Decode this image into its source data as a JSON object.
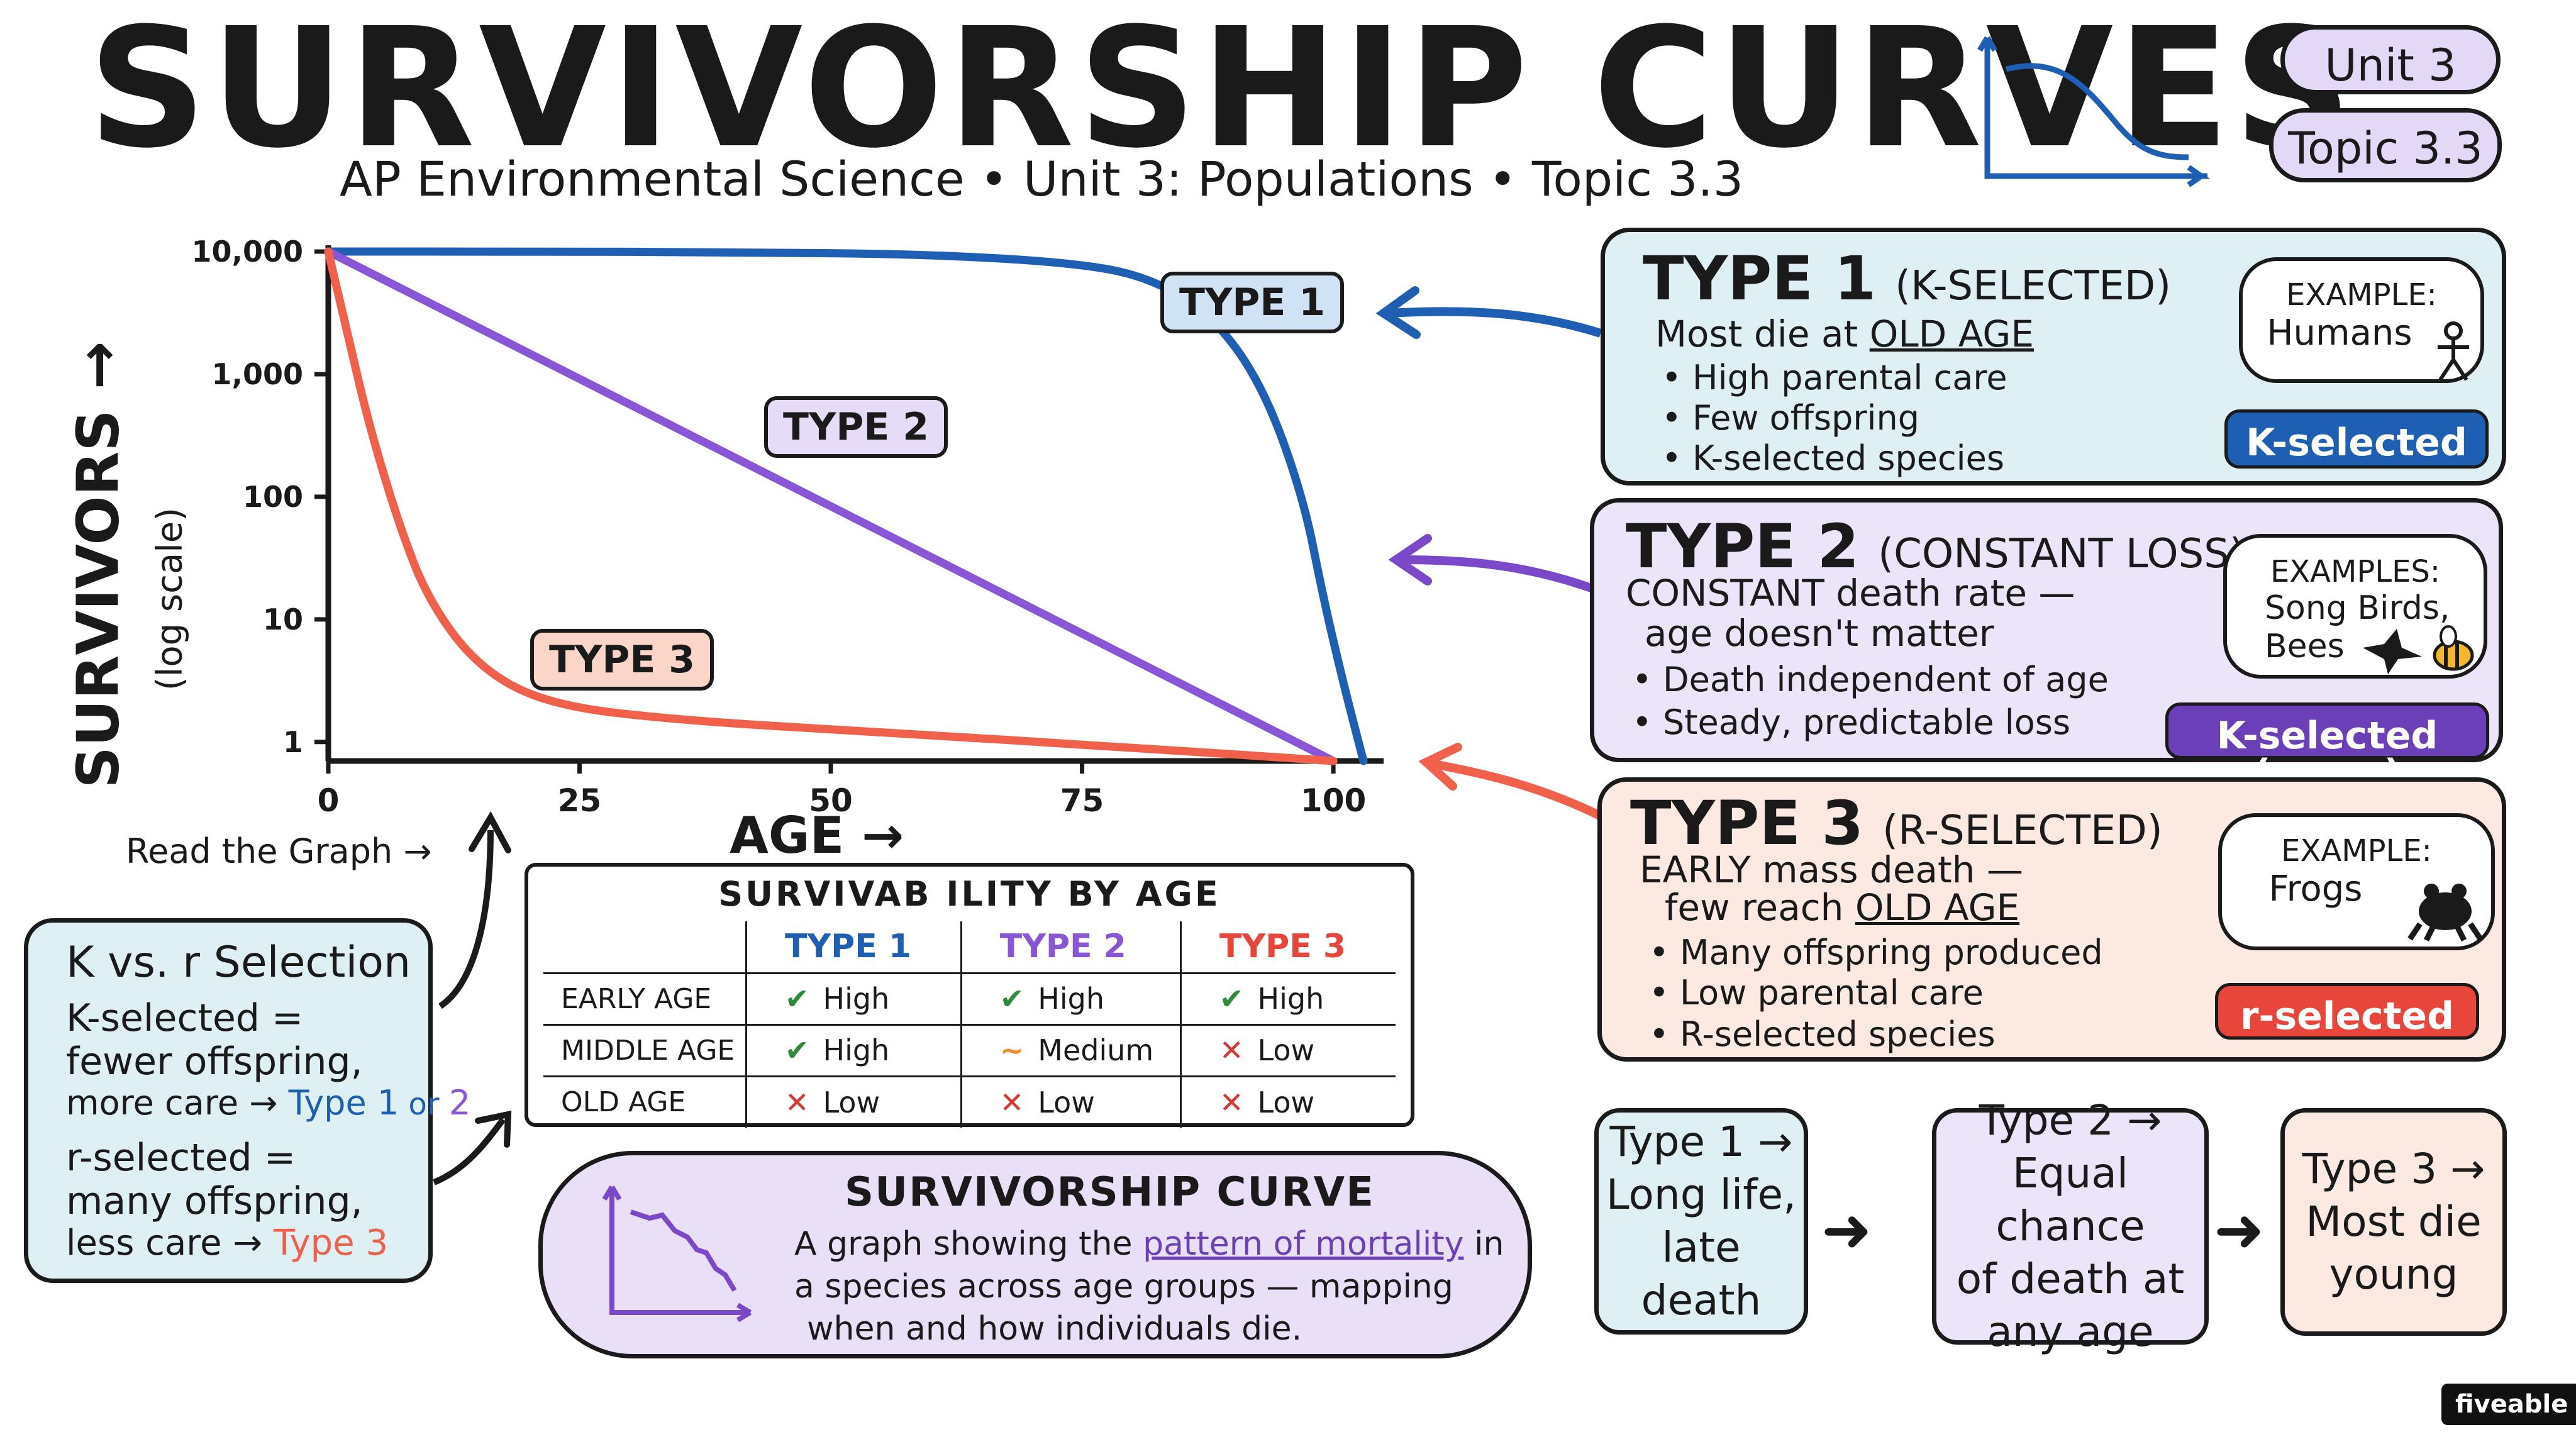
{
  "header": {
    "title": "SURVIVORSHIP CURVES",
    "subtitle": "AP Environmental Science • Unit 3: Populations • Topic 3.3",
    "unit_pill": "Unit 3",
    "topic_pill": "Topic 3.3"
  },
  "chart_data": {
    "type": "line",
    "xlabel": "AGE →",
    "ylabel": "SURVIVORS →",
    "ylabel_sub": "(log scale)",
    "x_ticks": [
      "0",
      "25",
      "50",
      "75",
      "100"
    ],
    "y_ticks": [
      "10,000",
      "1,000",
      "100",
      "10",
      "1"
    ],
    "y_scale": "log",
    "xlim": [
      0,
      105
    ],
    "ylim": [
      0.7,
      10000
    ],
    "grid": false,
    "series": [
      {
        "name": "TYPE 1",
        "color": "#1f5fb3",
        "points": [
          [
            0,
            10000
          ],
          [
            20,
            10000
          ],
          [
            40,
            9900
          ],
          [
            60,
            9500
          ],
          [
            75,
            8000
          ],
          [
            82,
            6000
          ],
          [
            88,
            3000
          ],
          [
            93,
            800
          ],
          [
            97,
            100
          ],
          [
            99,
            15
          ],
          [
            101,
            3
          ],
          [
            103,
            0.7
          ]
        ]
      },
      {
        "name": "TYPE 2",
        "color": "#8856d6",
        "points": [
          [
            0,
            10000
          ],
          [
            100,
            0.7
          ]
        ]
      },
      {
        "name": "TYPE 3",
        "color": "#f0604a",
        "points": [
          [
            0,
            10000
          ],
          [
            2,
            2000
          ],
          [
            4,
            400
          ],
          [
            7,
            60
          ],
          [
            10,
            14
          ],
          [
            15,
            4
          ],
          [
            22,
            2
          ],
          [
            35,
            1.5
          ],
          [
            55,
            1.2
          ],
          [
            80,
            0.9
          ],
          [
            100,
            0.7
          ]
        ]
      }
    ]
  },
  "chart_labels": {
    "type1": "TYPE 1",
    "type2": "TYPE 2",
    "type3": "TYPE 3",
    "read_graph": "Read the Graph →"
  },
  "cards": {
    "type1": {
      "title": "TYPE 1",
      "subtitle": "(K-SELECTED)",
      "line1_prefix": "Most die at ",
      "line1_emph": "OLD AGE",
      "bullets": [
        "• High parental care",
        "• Few offspring",
        "• K-selected species"
      ],
      "example_label": "EXAMPLE:",
      "example_value": "Humans",
      "badge": "K-selected",
      "badge_color": "#1f5fb3",
      "bg": "#dff0f5"
    },
    "type2": {
      "title": "TYPE 2",
      "subtitle": "(CONSTANT LOSS)",
      "line1": "CONSTANT death rate —",
      "line2": "age doesn't matter",
      "bullets": [
        "• Death independent of age",
        "• Steady, predictable loss"
      ],
      "example_label": "EXAMPLES:",
      "example_value1": "Song Birds,",
      "example_value2": "Bees",
      "badge": "K-selected (some)",
      "badge_color": "#6a3fb8",
      "bg": "#ece4f8"
    },
    "type3": {
      "title": "TYPE 3",
      "subtitle": "(R-SELECTED)",
      "line1": "EARLY mass death —",
      "line2_prefix": "few reach ",
      "line2_emph": "OLD AGE",
      "bullets": [
        "• Many offspring produced",
        "• Low parental care",
        "• R-selected species"
      ],
      "example_label": "EXAMPLE:",
      "example_value": "Frogs",
      "badge": "r-selected",
      "badge_color": "#e8463a",
      "bg": "#fbe9e2"
    }
  },
  "kr_box": {
    "title": "K vs. r Selection",
    "k_line1": "K-selected =",
    "k_line2": "fewer offspring,",
    "k_line3_prefix": "more care → ",
    "k_type1": "Type 1",
    "k_or": " or ",
    "k_type2": "2",
    "r_line1": "r-selected =",
    "r_line2": "many offspring,",
    "r_line3_prefix": "less care → ",
    "r_type3": "Type 3"
  },
  "table": {
    "title": "SURVIVAB ILITY BY AGE",
    "headers": [
      "TYPE 1",
      "TYPE 2",
      "TYPE 3"
    ],
    "rows": [
      {
        "label": "EARLY AGE",
        "cells": [
          "High",
          "High",
          "High"
        ]
      },
      {
        "label": "MIDDLE AGE",
        "cells": [
          "High",
          "Medium",
          "Low"
        ]
      },
      {
        "label": "OLD AGE",
        "cells": [
          "Low",
          "Low",
          "Low"
        ]
      }
    ]
  },
  "definition": {
    "title": "SURVIVORSHIP CURVE",
    "line1_a": "A graph showing the ",
    "line1_b": "pattern of mortality",
    "line1_c": " in",
    "line2": "a species across age groups — mapping",
    "line3": "when and how individuals die."
  },
  "flow": {
    "box1_l1": "Type 1 →",
    "box1_l2": "Long life,",
    "box1_l3": "late death",
    "box2_l1": "Type 2 →",
    "box2_l2": "Equal chance",
    "box2_l3": "of death at",
    "box2_l4": "any age",
    "box3_l1": "Type 3 →",
    "box3_l2": "Most die",
    "box3_l3": "young"
  },
  "brand": "fiveable"
}
